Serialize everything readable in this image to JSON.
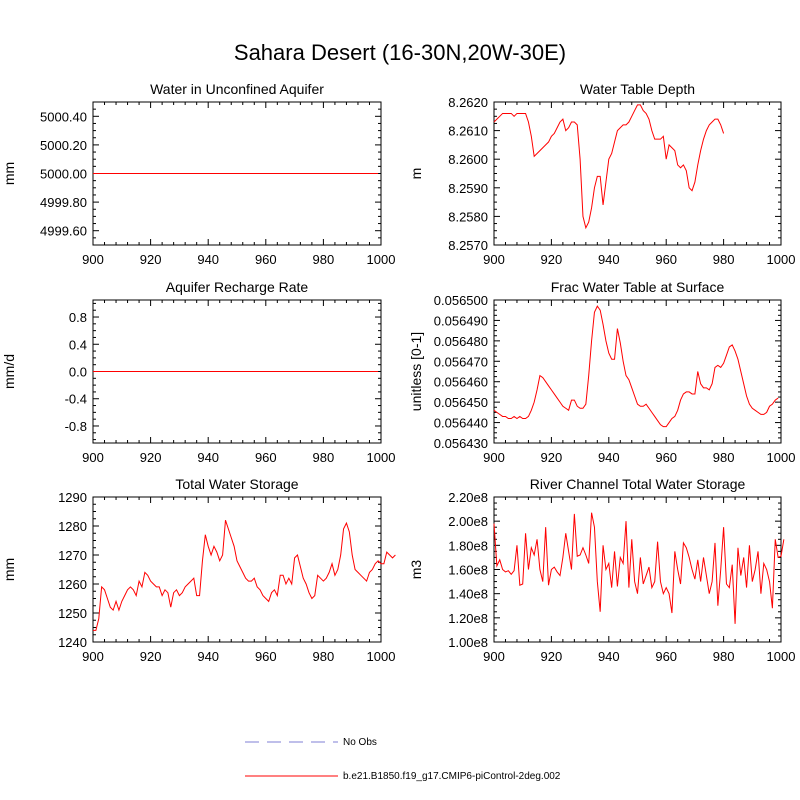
{
  "figure": {
    "title": "Sahara Desert (16-30N,20W-30E)",
    "line_color": "#ff0000",
    "obs_color": "#9999dd"
  },
  "legend": {
    "items": [
      {
        "label": "No Obs",
        "style": "dashed",
        "color": "#9999dd"
      },
      {
        "label": "b.e21.B1850.f19_g17.CMIP6-piControl-2deg.002",
        "style": "solid",
        "color": "#ff0000"
      }
    ]
  },
  "chart_data": [
    {
      "type": "line",
      "title": "Water in Unconfined Aquifer",
      "ylabel": "mm",
      "xlim": [
        900,
        1000
      ],
      "ylim": [
        4999.5,
        5000.5
      ],
      "xticks": [
        900,
        920,
        940,
        960,
        980,
        1000
      ],
      "yticks": [
        4999.6,
        4999.8,
        5000.0,
        5000.2,
        5000.4
      ],
      "yticklabels": [
        "4999.60",
        "4999.80",
        "5000.00",
        "5000.20",
        "5000.40"
      ],
      "grid": false,
      "series": [
        {
          "x_start": 900,
          "x_step": 1,
          "values": [
            5000,
            5000,
            5000,
            5000,
            5000,
            5000,
            5000,
            5000,
            5000,
            5000,
            5000,
            5000,
            5000,
            5000,
            5000,
            5000,
            5000,
            5000,
            5000,
            5000,
            5000,
            5000,
            5000,
            5000,
            5000,
            5000,
            5000,
            5000,
            5000,
            5000,
            5000,
            5000,
            5000,
            5000,
            5000,
            5000,
            5000,
            5000,
            5000,
            5000,
            5000,
            5000,
            5000,
            5000,
            5000,
            5000,
            5000,
            5000,
            5000,
            5000,
            5000,
            5000,
            5000,
            5000,
            5000,
            5000,
            5000,
            5000,
            5000,
            5000,
            5000,
            5000,
            5000,
            5000,
            5000,
            5000,
            5000,
            5000,
            5000,
            5000,
            5000,
            5000,
            5000,
            5000,
            5000,
            5000,
            5000,
            5000,
            5000,
            5000,
            5000,
            5000,
            5000,
            5000,
            5000,
            5000,
            5000,
            5000,
            5000,
            5000,
            5000,
            5000,
            5000,
            5000,
            5000,
            5000,
            5000,
            5000,
            5000,
            5000
          ]
        }
      ]
    },
    {
      "type": "line",
      "title": "Water Table Depth",
      "ylabel": "m",
      "xlim": [
        900,
        1000
      ],
      "ylim": [
        8.257,
        8.262
      ],
      "xticks": [
        900,
        920,
        940,
        960,
        980,
        1000
      ],
      "yticks": [
        8.257,
        8.258,
        8.259,
        8.26,
        8.261,
        8.262
      ],
      "yticklabels": [
        "8.2570",
        "8.2580",
        "8.2590",
        "8.2600",
        "8.2610",
        "8.2620"
      ],
      "grid": false,
      "series": [
        {
          "x_start": 900,
          "x_step": 1,
          "values": [
            8.2613,
            8.2614,
            8.2615,
            8.2616,
            8.2616,
            8.2616,
            8.2616,
            8.2615,
            8.2616,
            8.2616,
            8.2616,
            8.2616,
            8.2613,
            8.2608,
            8.2601,
            8.2602,
            8.2603,
            8.2604,
            8.2605,
            8.2606,
            8.2608,
            8.2609,
            8.2611,
            8.2613,
            8.2614,
            8.261,
            8.2611,
            8.2613,
            8.2613,
            8.2612,
            8.26,
            8.258,
            8.2576,
            8.2578,
            8.2583,
            8.259,
            8.2594,
            8.2594,
            8.2584,
            8.2592,
            8.26,
            8.2602,
            8.2606,
            8.261,
            8.2611,
            8.2612,
            8.2612,
            8.2613,
            8.2615,
            8.2617,
            8.2619,
            8.2619,
            8.2617,
            8.2616,
            8.2614,
            8.261,
            8.2607,
            8.2607,
            8.2607,
            8.2608,
            8.26,
            8.2605,
            8.2604,
            8.2603,
            8.2598,
            8.2597,
            8.2598,
            8.2596,
            8.259,
            8.2589,
            8.2592,
            8.2598,
            8.2603,
            8.2607,
            8.261,
            8.2612,
            8.2613,
            8.2614,
            8.2614,
            8.2612,
            8.2609
          ]
        }
      ]
    },
    {
      "type": "line",
      "title": "Aquifer Recharge Rate",
      "ylabel": "mm/d",
      "xlim": [
        900,
        1000
      ],
      "ylim": [
        -1.05,
        1.05
      ],
      "xticks": [
        900,
        920,
        940,
        960,
        980,
        1000
      ],
      "yticks": [
        -0.8,
        -0.4,
        0.0,
        0.4,
        0.8
      ],
      "yticklabels": [
        "-0.8",
        "-0.4",
        "0.0",
        "0.4",
        "0.8"
      ],
      "grid": false,
      "series": [
        {
          "x_start": 900,
          "x_step": 1,
          "values": [
            0,
            0,
            0,
            0,
            0,
            0,
            0,
            0,
            0,
            0,
            0,
            0,
            0,
            0,
            0,
            0,
            0,
            0,
            0,
            0,
            0,
            0,
            0,
            0,
            0,
            0,
            0,
            0,
            0,
            0,
            0,
            0,
            0,
            0,
            0,
            0,
            0,
            0,
            0,
            0,
            0,
            0,
            0,
            0,
            0,
            0,
            0,
            0,
            0,
            0,
            0,
            0,
            0,
            0,
            0,
            0,
            0,
            0,
            0,
            0,
            0,
            0,
            0,
            0,
            0,
            0,
            0,
            0,
            0,
            0,
            0,
            0,
            0,
            0,
            0,
            0,
            0,
            0,
            0,
            0,
            0,
            0,
            0,
            0,
            0,
            0,
            0,
            0,
            0,
            0,
            0,
            0,
            0,
            0,
            0,
            0,
            0,
            0,
            0,
            0
          ]
        }
      ]
    },
    {
      "type": "line",
      "title": "Frac Water Table at Surface",
      "ylabel": "unitless [0-1]",
      "xlim": [
        900,
        1000
      ],
      "ylim": [
        0.05643,
        0.0565
      ],
      "xticks": [
        900,
        920,
        940,
        960,
        980,
        1000
      ],
      "yticks": [
        0.05643,
        0.05644,
        0.05645,
        0.05646,
        0.05647,
        0.05648,
        0.05649,
        0.0565
      ],
      "yticklabels": [
        "0.056430",
        "0.056440",
        "0.056450",
        "0.056460",
        "0.056470",
        "0.056480",
        "0.056490",
        "0.056500"
      ],
      "grid": false,
      "series": [
        {
          "x_start": 900,
          "x_step": 1,
          "values": [
            0.056446,
            0.056445,
            0.056444,
            0.056443,
            0.056443,
            0.056442,
            0.056442,
            0.056443,
            0.056442,
            0.056443,
            0.056442,
            0.056442,
            0.056443,
            0.056446,
            0.05645,
            0.056456,
            0.056463,
            0.056462,
            0.05646,
            0.056458,
            0.056456,
            0.056454,
            0.056452,
            0.05645,
            0.056448,
            0.056447,
            0.056446,
            0.056451,
            0.056451,
            0.056448,
            0.056447,
            0.056447,
            0.056449,
            0.056463,
            0.05648,
            0.056494,
            0.056497,
            0.056495,
            0.056488,
            0.05648,
            0.056474,
            0.056471,
            0.056471,
            0.056486,
            0.056479,
            0.05647,
            0.056463,
            0.056461,
            0.056457,
            0.056453,
            0.056449,
            0.056448,
            0.056448,
            0.056449,
            0.056447,
            0.056445,
            0.056443,
            0.056441,
            0.056439,
            0.056438,
            0.056438,
            0.05644,
            0.056442,
            0.056443,
            0.056446,
            0.056451,
            0.056454,
            0.056455,
            0.056455,
            0.056454,
            0.056454,
            0.056465,
            0.056459,
            0.056457,
            0.056457,
            0.056456,
            0.056459,
            0.056467,
            0.056468,
            0.056467,
            0.056469,
            0.056473,
            0.056477,
            0.056478,
            0.056475,
            0.056471,
            0.056465,
            0.056459,
            0.056453,
            0.056449,
            0.056447,
            0.056446,
            0.056445,
            0.056444,
            0.056444,
            0.056445,
            0.056448,
            0.056449,
            0.056451,
            0.056452
          ]
        }
      ]
    },
    {
      "type": "line",
      "title": "Total Water Storage",
      "ylabel": "mm",
      "xlim": [
        900,
        1000
      ],
      "ylim": [
        1240,
        1290
      ],
      "xticks": [
        900,
        920,
        940,
        960,
        980,
        1000
      ],
      "yticks": [
        1240,
        1250,
        1260,
        1270,
        1280,
        1290
      ],
      "yticklabels": [
        "1240",
        "1250",
        "1260",
        "1270",
        "1280",
        "1290"
      ],
      "grid": false,
      "series": [
        {
          "x_start": 900,
          "x_step": 1,
          "values": [
            1244,
            1244,
            1248,
            1259,
            1258,
            1255,
            1252,
            1251,
            1254,
            1251,
            1254,
            1256,
            1258,
            1259,
            1258,
            1256,
            1261,
            1259,
            1264,
            1263,
            1261,
            1260,
            1259,
            1259,
            1256,
            1258,
            1257,
            1252,
            1257,
            1258,
            1256,
            1257,
            1259,
            1260,
            1261,
            1262,
            1256,
            1256,
            1268,
            1277,
            1273,
            1270,
            1273,
            1271,
            1268,
            1270,
            1282,
            1279,
            1276,
            1273,
            1268,
            1266,
            1264,
            1262,
            1261,
            1261,
            1262,
            1259,
            1258,
            1256,
            1255,
            1254,
            1257,
            1258,
            1256,
            1263,
            1263,
            1260,
            1262,
            1260,
            1269,
            1270,
            1266,
            1262,
            1260,
            1257,
            1255,
            1256,
            1263,
            1262,
            1261,
            1262,
            1264,
            1267,
            1263,
            1265,
            1270,
            1279,
            1281,
            1278,
            1270,
            1265,
            1264,
            1263,
            1262,
            1261,
            1264,
            1265,
            1267,
            1268,
            1267,
            1267,
            1271,
            1270,
            1269,
            1270
          ]
        }
      ]
    },
    {
      "type": "line",
      "title": "River Channel Total Water Storage",
      "ylabel": "m3",
      "xlim": [
        900,
        1000
      ],
      "ylim": [
        100000000,
        220000000
      ],
      "xticks": [
        900,
        920,
        940,
        960,
        980,
        1000
      ],
      "yticks": [
        100000000,
        120000000,
        140000000,
        160000000,
        180000000,
        200000000,
        220000000
      ],
      "yticklabels": [
        "1.00e8",
        "1.20e8",
        "1.40e8",
        "1.60e8",
        "1.80e8",
        "2.00e8",
        "2.20e8"
      ],
      "grid": false,
      "series": [
        {
          "x_start": 900,
          "x_step": 1,
          "values": [
            198000000,
            163000000,
            168000000,
            160000000,
            158000000,
            159000000,
            156000000,
            159000000,
            180000000,
            147000000,
            148000000,
            190000000,
            160000000,
            178000000,
            172000000,
            185000000,
            160000000,
            150000000,
            195000000,
            147000000,
            160000000,
            162000000,
            158000000,
            155000000,
            170000000,
            190000000,
            175000000,
            160000000,
            206000000,
            171000000,
            172000000,
            178000000,
            172000000,
            165000000,
            207000000,
            195000000,
            150000000,
            125000000,
            180000000,
            160000000,
            165000000,
            145000000,
            175000000,
            146000000,
            170000000,
            165000000,
            200000000,
            145000000,
            185000000,
            150000000,
            140000000,
            170000000,
            148000000,
            155000000,
            162000000,
            145000000,
            150000000,
            183000000,
            150000000,
            140000000,
            145000000,
            140000000,
            124000000,
            175000000,
            160000000,
            148000000,
            182000000,
            178000000,
            170000000,
            160000000,
            152000000,
            168000000,
            150000000,
            170000000,
            155000000,
            140000000,
            150000000,
            182000000,
            130000000,
            160000000,
            195000000,
            148000000,
            145000000,
            164000000,
            115000000,
            178000000,
            155000000,
            170000000,
            145000000,
            180000000,
            150000000,
            160000000,
            175000000,
            140000000,
            165000000,
            160000000,
            150000000,
            128000000,
            185000000,
            170000000,
            171000000,
            185000000
          ]
        }
      ]
    }
  ]
}
